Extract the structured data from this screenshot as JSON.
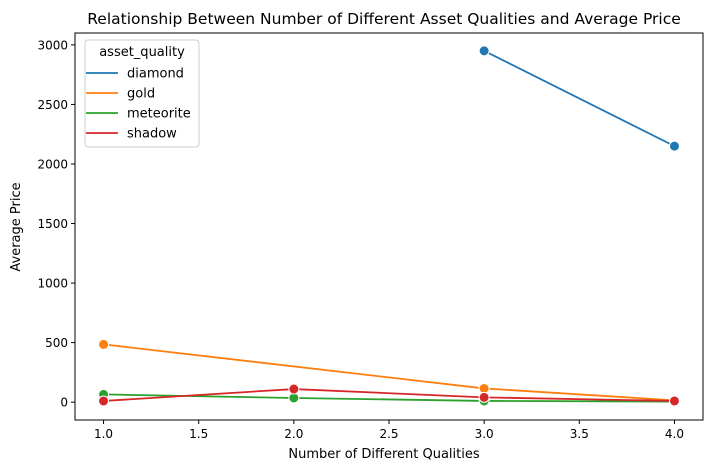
{
  "chart_data": {
    "type": "line",
    "title": "Relationship Between Number of Different Asset Qualities and Average Price",
    "xlabel": "Number of Different Qualities",
    "ylabel": "Average Price",
    "xlim": [
      0.85,
      4.15
    ],
    "ylim": [
      -150,
      3100
    ],
    "xticks": [
      1.0,
      1.5,
      2.0,
      2.5,
      3.0,
      3.5,
      4.0
    ],
    "xtick_labels": [
      "1.0",
      "1.5",
      "2.0",
      "2.5",
      "3.0",
      "3.5",
      "4.0"
    ],
    "yticks": [
      0,
      500,
      1000,
      1500,
      2000,
      2500,
      3000
    ],
    "ytick_labels": [
      "0",
      "500",
      "1000",
      "1500",
      "2000",
      "2500",
      "3000"
    ],
    "grid": false,
    "legend": {
      "title": "asset_quality",
      "placement": "top-left"
    },
    "series": [
      {
        "name": "diamond",
        "color": "#1f77b4",
        "x": [
          3,
          4
        ],
        "y": [
          2950,
          2150
        ]
      },
      {
        "name": "gold",
        "color": "#ff7f0e",
        "x": [
          1,
          3,
          4
        ],
        "y": [
          485,
          115,
          15
        ]
      },
      {
        "name": "meteorite",
        "color": "#2ca02c",
        "x": [
          1,
          2,
          3,
          4
        ],
        "y": [
          65,
          35,
          10,
          5
        ]
      },
      {
        "name": "shadow",
        "color": "#d62728",
        "x": [
          1,
          2,
          3,
          4
        ],
        "y": [
          10,
          110,
          40,
          10
        ]
      }
    ]
  }
}
